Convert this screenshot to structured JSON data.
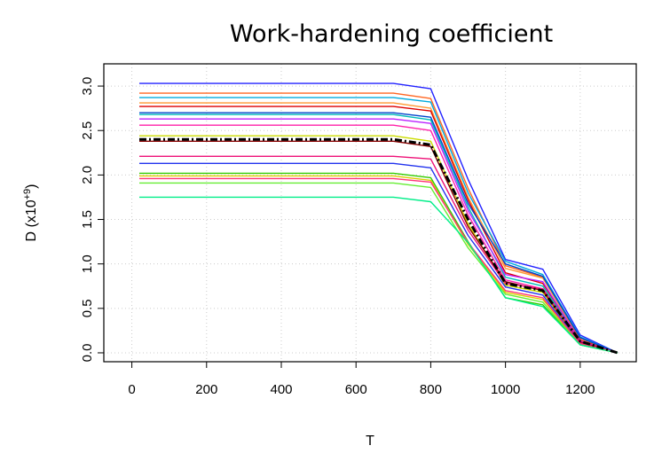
{
  "chart_data": {
    "type": "line",
    "title": "Work-hardening coefficient",
    "xlabel": "T",
    "ylabel_main": "D (x10",
    "ylabel_sup": "+9",
    "ylabel_end": ")",
    "xlim": [
      -75,
      1350
    ],
    "ylim": [
      -0.1,
      3.25
    ],
    "xticks": [
      0,
      200,
      400,
      600,
      800,
      1000,
      1200
    ],
    "yticks": [
      0.0,
      0.5,
      1.0,
      1.5,
      2.0,
      2.5,
      3.0
    ],
    "grid": true,
    "x": [
      20,
      700,
      800,
      900,
      1000,
      1100,
      1200,
      1300
    ],
    "series": [
      {
        "color": "#2222ff",
        "values": [
          3.03,
          3.03,
          2.97,
          1.95,
          1.05,
          0.94,
          0.2,
          0.0
        ]
      },
      {
        "color": "#ff6622",
        "values": [
          2.92,
          2.92,
          2.86,
          1.85,
          0.98,
          0.85,
          0.16,
          0.0
        ]
      },
      {
        "color": "#00aadd",
        "values": [
          2.87,
          2.87,
          2.82,
          1.8,
          1.03,
          0.88,
          0.18,
          0.0
        ]
      },
      {
        "color": "#ff9933",
        "values": [
          2.81,
          2.81,
          2.75,
          1.75,
          0.95,
          0.84,
          0.14,
          0.0
        ]
      },
      {
        "color": "#dd0000",
        "values": [
          2.77,
          2.77,
          2.72,
          1.72,
          0.9,
          0.78,
          0.14,
          0.0
        ]
      },
      {
        "color": "#0044cc",
        "values": [
          2.7,
          2.7,
          2.65,
          1.68,
          1.0,
          0.86,
          0.17,
          0.0
        ]
      },
      {
        "color": "#00bbbb",
        "values": [
          2.68,
          2.68,
          2.62,
          1.64,
          0.85,
          0.75,
          0.12,
          0.0
        ]
      },
      {
        "color": "#bb22ff",
        "values": [
          2.63,
          2.63,
          2.58,
          1.6,
          0.88,
          0.8,
          0.13,
          0.0
        ]
      },
      {
        "color": "#ff22aa",
        "values": [
          2.56,
          2.56,
          2.5,
          1.55,
          0.82,
          0.72,
          0.12,
          0.0
        ]
      },
      {
        "color": "#ccdd00",
        "values": [
          2.44,
          2.44,
          2.38,
          1.45,
          0.76,
          0.68,
          0.11,
          0.0
        ]
      },
      {
        "color": "#880000",
        "values": [
          2.38,
          2.38,
          2.32,
          1.42,
          0.8,
          0.7,
          0.12,
          0.0
        ]
      },
      {
        "color": "#ee1177",
        "values": [
          2.21,
          2.21,
          2.18,
          1.38,
          0.78,
          0.72,
          0.11,
          0.0
        ]
      },
      {
        "color": "#2233ee",
        "values": [
          2.13,
          2.13,
          2.08,
          1.32,
          0.74,
          0.65,
          0.1,
          0.0
        ]
      },
      {
        "color": "#33cc00",
        "values": [
          2.02,
          2.02,
          1.97,
          1.25,
          0.62,
          0.54,
          0.09,
          0.0
        ]
      },
      {
        "color": "#ddcc00",
        "values": [
          1.99,
          1.99,
          1.94,
          1.22,
          0.68,
          0.6,
          0.1,
          0.0
        ]
      },
      {
        "color": "#ff3377",
        "values": [
          1.96,
          1.96,
          1.92,
          1.24,
          0.7,
          0.62,
          0.1,
          0.0
        ]
      },
      {
        "color": "#66ee33",
        "values": [
          1.91,
          1.91,
          1.86,
          1.18,
          0.66,
          0.57,
          0.09,
          0.0
        ]
      },
      {
        "color": "#00ee88",
        "values": [
          1.75,
          1.75,
          1.7,
          1.24,
          0.62,
          0.52,
          0.09,
          0.0
        ]
      },
      {
        "color": "#000000",
        "dashed": true,
        "width": 3,
        "values": [
          2.4,
          2.4,
          2.34,
          1.5,
          0.78,
          0.7,
          0.13,
          0.0
        ]
      }
    ]
  }
}
